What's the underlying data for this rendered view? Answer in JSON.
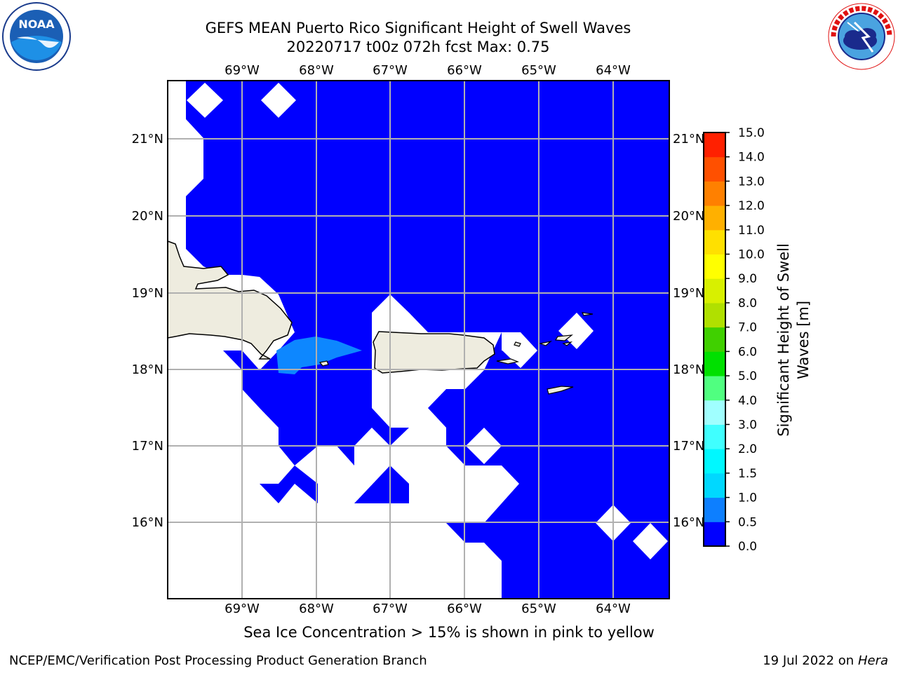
{
  "title": {
    "line1": "GEFS MEAN Puerto Rico Significant Height of Swell Waves",
    "line2": "20220717 t00z 072h fcst   Max: 0.75"
  },
  "logos": {
    "left": {
      "name": "noaa-logo",
      "text": "NOAA",
      "ring_text": "NATIONAL OCEANIC AND ATMOSPHERIC ADMINISTRATION · U.S. DEPARTMENT OF COMMERCE"
    },
    "right": {
      "name": "nws-logo",
      "ring_text": "NATIONAL WEATHER SERVICE"
    }
  },
  "map": {
    "lon_ticks": [
      "69°W",
      "68°W",
      "67°W",
      "66°W",
      "65°W",
      "64°W"
    ],
    "lat_ticks": [
      "21°N",
      "20°N",
      "19°N",
      "18°N",
      "17°N",
      "16°N"
    ],
    "colors": {
      "land": "#eeecdf",
      "ocean_low": "#0000ff",
      "ocean_mid": "#0d87ff",
      "grid": "#b0b0b0"
    }
  },
  "colorbar": {
    "label_line1": "Significant Height of Swell",
    "label_line2": "Waves [m]",
    "ticks": [
      "0.0",
      "0.5",
      "1.0",
      "1.5",
      "2.0",
      "3.0",
      "4.0",
      "5.0",
      "6.0",
      "7.0",
      "8.0",
      "9.0",
      "10.0",
      "11.0",
      "12.0",
      "13.0",
      "14.0",
      "15.0"
    ],
    "colors": [
      "#0000ff",
      "#0d7fff",
      "#00d8ff",
      "#00f8ff",
      "#40ffff",
      "#a0ffff",
      "#50ff80",
      "#00e000",
      "#40d000",
      "#b0e000",
      "#d8f000",
      "#ffff00",
      "#ffe000",
      "#ffb000",
      "#ff8000",
      "#ff5000",
      "#ff2000",
      "#ff0000"
    ]
  },
  "footer": {
    "note": "Sea Ice Concentration > 15% is shown in pink to yellow",
    "left": "NCEP/EMC/Verification Post Processing Product Generation Branch",
    "right_date": "19 Jul 2022 on ",
    "right_host": "Hera"
  }
}
